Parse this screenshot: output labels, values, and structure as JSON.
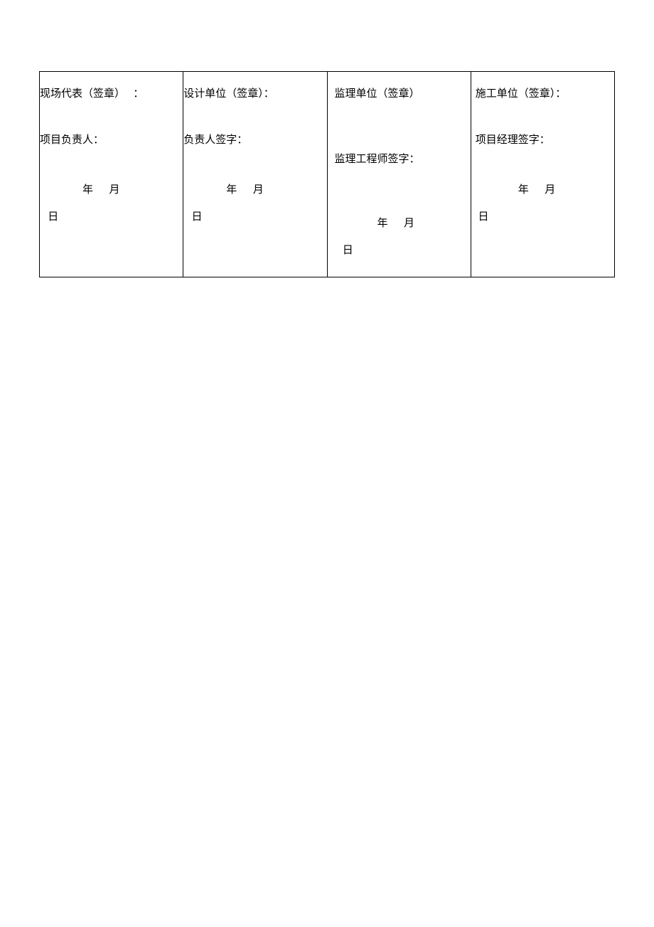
{
  "table": {
    "border_color": "#000000",
    "background_color": "#ffffff",
    "text_color": "#000000",
    "font_size": 15,
    "columns": [
      {
        "header": "现场代表（签章）   ：",
        "signer_label": "项目负责人：",
        "date_parts": {
          "year_prefix": "                年      月",
          "day_prefix": "   日"
        }
      },
      {
        "header": "设计单位（签章）：",
        "signer_label": "负责人签字：",
        "date_parts": {
          "year_prefix": "                年      月",
          "day_prefix": "   日"
        }
      },
      {
        "header": "监理单位（签章）",
        "signer_label": "监理工程师签字：",
        "date_parts": {
          "year_prefix": "                年      月",
          "day_prefix": "   日"
        }
      },
      {
        "header": "施工单位（签章）：",
        "signer_label": "项目经理签字：",
        "date_parts": {
          "year_prefix": "                年      月",
          "day_prefix": " 日"
        }
      }
    ]
  }
}
